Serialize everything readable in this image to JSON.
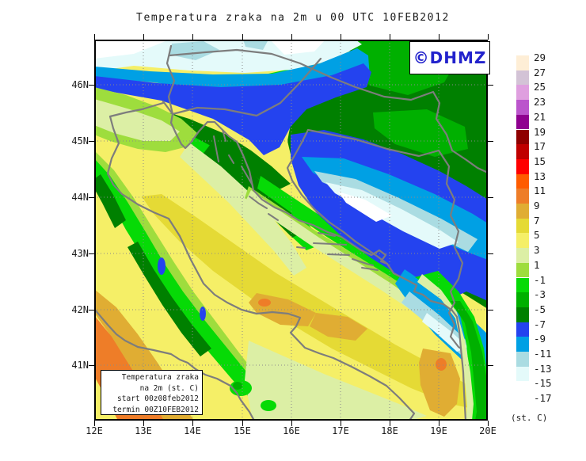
{
  "title": "Temperatura zraka na 2m u 00 UTC 10FEB2012",
  "watermark": {
    "text": "©DHMZ",
    "color": "#2222cc"
  },
  "map": {
    "lat_ticks": [
      "46N",
      "45N",
      "44N",
      "43N",
      "42N",
      "41N"
    ],
    "lon_ticks": [
      "12E",
      "13E",
      "14E",
      "15E",
      "16E",
      "17E",
      "18E",
      "19E",
      "20E"
    ]
  },
  "colorbar": {
    "unit": "(st. C)",
    "labels": [
      "29",
      "27",
      "25",
      "23",
      "21",
      "19",
      "17",
      "15",
      "13",
      "11",
      "9",
      "7",
      "5",
      "3",
      "1",
      "-1",
      "-3",
      "-5",
      "-7",
      "-9",
      "-11",
      "-13",
      "-15",
      "-17"
    ],
    "colors": [
      "#feeed6",
      "#d3c3d6",
      "#df9fdf",
      "#bb55cc",
      "#8f008f",
      "#8f0000",
      "#c00000",
      "#ff0000",
      "#ff5c00",
      "#ee7d28",
      "#e0ad33",
      "#e5da35",
      "#f5ef67",
      "#dcefa5",
      "#9edd3d",
      "#06da06",
      "#00b000",
      "#008000",
      "#2443ef",
      "#00a0e4",
      "#aadce2",
      "#e4fafa",
      "#ffffff"
    ]
  },
  "info_box": {
    "line1": "Temperatura zraka",
    "line2": "na 2m (st. C)",
    "line3": "start 00z08feb2012",
    "line4": "termin 00Z10FEB2012"
  }
}
